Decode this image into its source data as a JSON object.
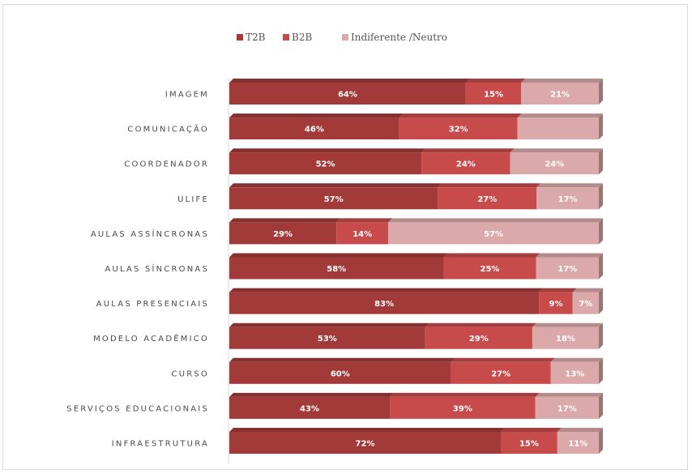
{
  "chart_data": {
    "type": "bar",
    "orientation": "horizontal",
    "stacked": "100%",
    "categories": [
      "IMAGEM",
      "COMUNICAÇÃO",
      "COORDENADOR",
      "ULIFE",
      "AULAS ASSÍNCRONAS",
      "AULAS SÍNCRONAS",
      "AULAS PRESENCIAIS",
      "MODELO ACADÊMICO",
      "CURSO",
      "SERVIÇOS EDUCACIONAIS",
      "INFRAESTRUTURA"
    ],
    "series": [
      {
        "name": "T2B",
        "color": "#a33a3a",
        "values": [
          64,
          46,
          52,
          57,
          29,
          58,
          83,
          53,
          60,
          43,
          72
        ]
      },
      {
        "name": "B2B",
        "color": "#c84b4b",
        "values": [
          15,
          32,
          24,
          27,
          14,
          25,
          9,
          29,
          27,
          39,
          15
        ]
      },
      {
        "name": "Indiferente /Neutro",
        "color": "#dba9a9",
        "values": [
          21,
          22,
          24,
          17,
          57,
          17,
          7,
          18,
          13,
          17,
          11
        ]
      }
    ],
    "data_labels": [
      [
        "64%",
        "15%",
        "21%"
      ],
      [
        "46%",
        "32%",
        ""
      ],
      [
        "52%",
        "24%",
        "24%"
      ],
      [
        "57%",
        "27%",
        "17%"
      ],
      [
        "29%",
        "14%",
        "57%"
      ],
      [
        "58%",
        "25%",
        "17%"
      ],
      [
        "83%",
        "9%",
        "7%"
      ],
      [
        "53%",
        "29%",
        "18%"
      ],
      [
        "60%",
        "27%",
        "13%"
      ],
      [
        "43%",
        "39%",
        "17%"
      ],
      [
        "72%",
        "15%",
        "11%"
      ]
    ],
    "xlim": [
      0,
      100
    ],
    "legend_position": "top",
    "grid": false
  }
}
